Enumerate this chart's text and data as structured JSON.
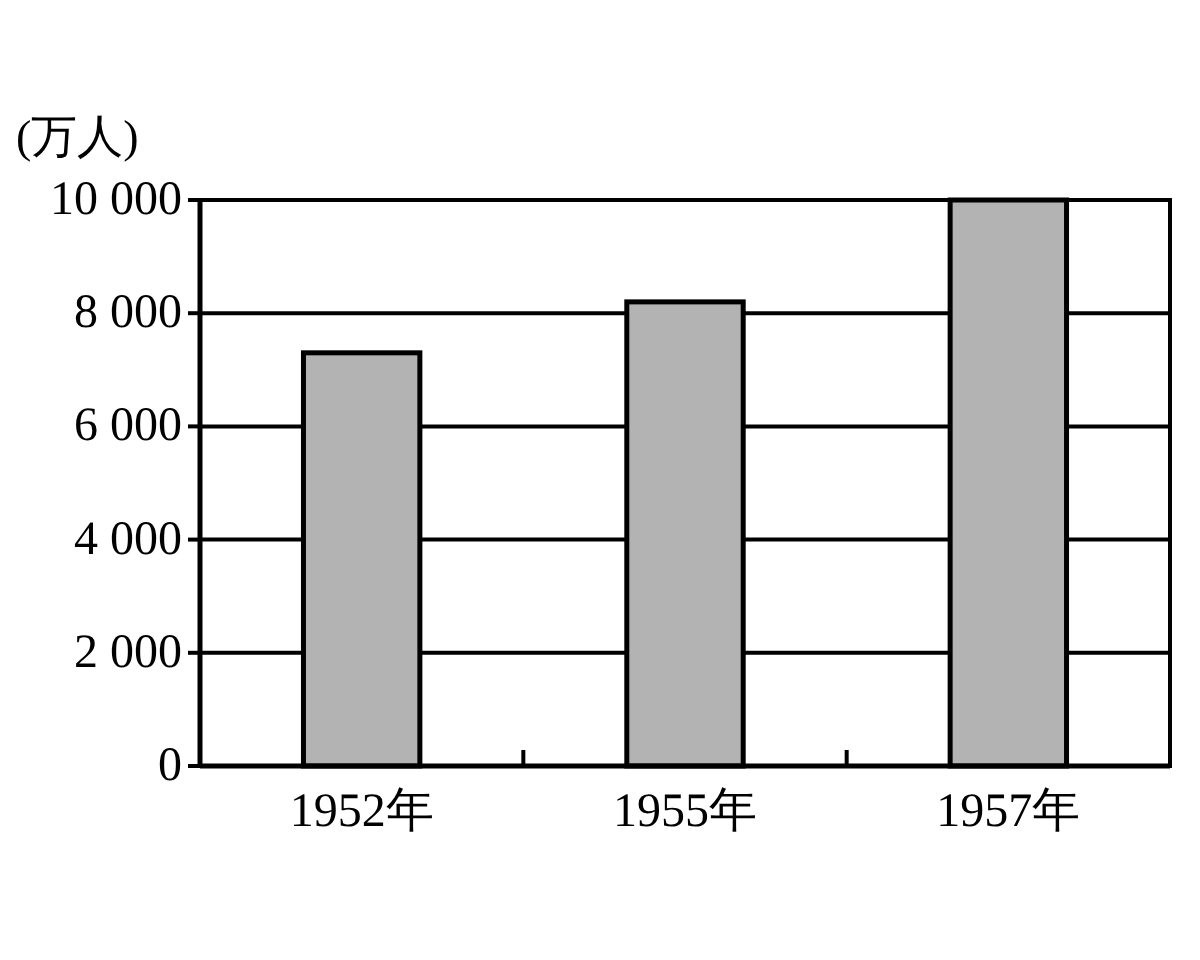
{
  "chart_data": {
    "type": "bar",
    "ylabel": "(万人)",
    "categories": [
      "1952年",
      "1955年",
      "1957年"
    ],
    "values": [
      7300,
      8200,
      10000
    ],
    "color": "#b3b3b3",
    "ylim": [
      0,
      10000
    ],
    "yticks": [
      0,
      {
        "value": 2000,
        "label": "2 000"
      },
      {
        "value": 4000,
        "label": "4 000"
      },
      {
        "value": 6000,
        "label": "6 000"
      },
      {
        "value": 8000,
        "label": "8 000"
      },
      {
        "value": 10000,
        "label": "10 000"
      }
    ],
    "grid": "y"
  }
}
